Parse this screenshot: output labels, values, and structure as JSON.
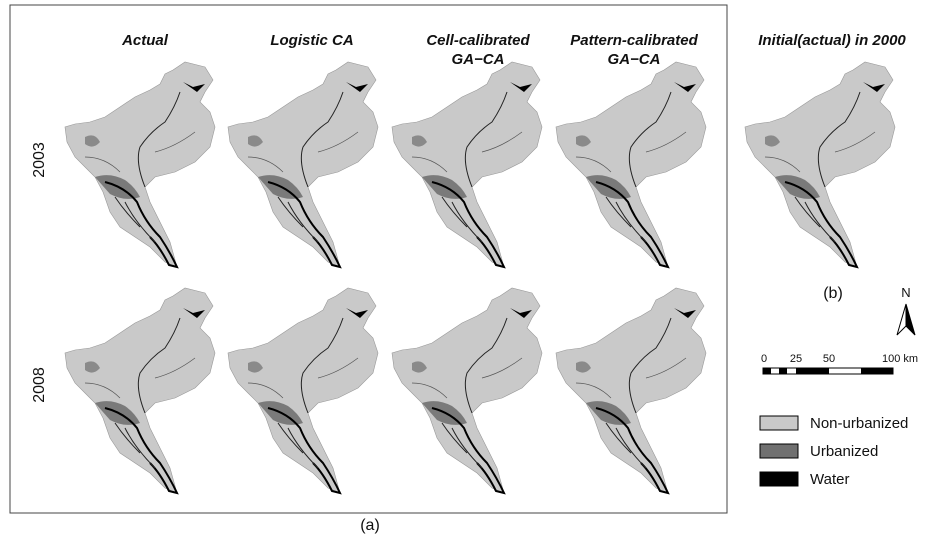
{
  "panel_a": {
    "columns": [
      [
        "Actual"
      ],
      [
        "Logistic CA"
      ],
      [
        "Cell-calibrated",
        "GA−CA"
      ],
      [
        "Pattern-calibrated",
        "GA−CA"
      ]
    ],
    "rows": [
      "2003",
      "2008"
    ],
    "label": "(a)"
  },
  "panel_b": {
    "title": "Initial(actual) in 2000",
    "label": "(b)"
  },
  "north": "N",
  "scale_bar": [
    "0",
    "25",
    "50",
    "100 km"
  ],
  "legend": [
    "Non-urbanized",
    "Urbanized",
    "Water"
  ]
}
